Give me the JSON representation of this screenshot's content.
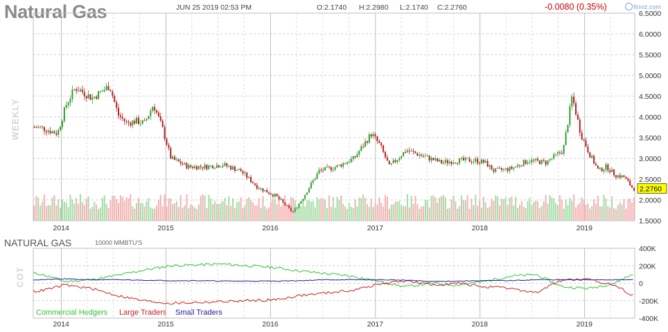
{
  "header": {
    "title": "Natural Gas",
    "datetime": "JUN 25 2019 02:53 PM",
    "open": "O:2.1740",
    "high": "H:2.2980",
    "low": "L:2.1740",
    "close": "C:2.2760",
    "change": "-0.0080 (0.35%)",
    "brand": "finviz.com"
  },
  "labels": {
    "weekly": "WEEKLY",
    "cot": "COT",
    "sub_title": "NATURAL GAS",
    "sub_unit": "10000 MMBTU'S",
    "price_tag": "2.2760"
  },
  "colors": {
    "up": "#2e9e2e",
    "down": "#b22222",
    "volume_up": "#a8dca8",
    "volume_down": "#f3b3b3",
    "commercial": "#2ec42e",
    "large": "#c81e1e",
    "small": "#1a1aa0",
    "change": "#cc0000",
    "tag": "#ffff00"
  },
  "chart_data": [
    {
      "type": "candlestick",
      "title": "Natural Gas",
      "ylabel": "",
      "ylim": [
        1.5,
        6.5
      ],
      "y_ticks": [
        "1.5000",
        "2.0000",
        "2.5000",
        "3.0000",
        "3.5000",
        "4.0000",
        "4.5000",
        "5.0000",
        "5.5000",
        "6.0000",
        "6.5000"
      ],
      "x_ticks": [
        "2014",
        "2015",
        "2016",
        "2017",
        "2018",
        "2019"
      ],
      "grid": true,
      "last_value": 2.276,
      "series": [
        {
          "x": [
            "2013-10",
            "2013-12",
            "2014-01",
            "2014-02",
            "2014-03",
            "2014-04",
            "2014-06",
            "2014-07",
            "2014-08",
            "2014-09",
            "2014-10",
            "2014-11",
            "2014-12",
            "2015-01",
            "2015-03",
            "2015-05",
            "2015-07",
            "2015-09",
            "2015-11",
            "2015-12",
            "2016-01",
            "2016-03",
            "2016-04",
            "2016-06",
            "2016-08",
            "2016-10",
            "2016-12",
            "2017-01",
            "2017-02",
            "2017-04",
            "2017-06",
            "2017-08",
            "2017-10",
            "2017-12",
            "2018-01",
            "2018-02",
            "2018-04",
            "2018-06",
            "2018-08",
            "2018-09",
            "2018-10",
            "2018-11",
            "2018-12",
            "2019-01",
            "2019-02",
            "2019-03",
            "2019-04",
            "2019-05",
            "2019-06"
          ],
          "values": [
            3.75,
            3.6,
            4.3,
            4.7,
            4.6,
            4.45,
            4.75,
            4.05,
            3.85,
            3.9,
            3.85,
            4.3,
            3.75,
            3.0,
            2.8,
            2.8,
            2.85,
            2.7,
            2.3,
            2.2,
            2.1,
            1.7,
            2.0,
            2.7,
            2.8,
            3.0,
            3.6,
            3.3,
            2.8,
            3.2,
            3.05,
            2.9,
            2.95,
            2.95,
            2.9,
            2.7,
            2.75,
            2.95,
            2.9,
            3.05,
            3.2,
            4.5,
            3.6,
            3.1,
            2.7,
            2.8,
            2.6,
            2.55,
            2.276
          ]
        }
      ]
    },
    {
      "type": "line",
      "title": "NATURAL GAS",
      "ylabel": "10000 MMBTU'S",
      "ylim": [
        -400000,
        400000
      ],
      "y_ticks": [
        "-400K",
        "-200K",
        "0",
        "200K",
        "400K"
      ],
      "x_ticks": [
        "2014",
        "2015",
        "2016",
        "2017",
        "2018",
        "2019"
      ],
      "x": [
        "2013-10",
        "2014-01",
        "2014-04",
        "2014-07",
        "2014-10",
        "2015-01",
        "2015-04",
        "2015-07",
        "2015-10",
        "2016-01",
        "2016-04",
        "2016-07",
        "2016-10",
        "2017-01",
        "2017-04",
        "2017-07",
        "2017-10",
        "2018-01",
        "2018-04",
        "2018-07",
        "2018-10",
        "2019-01",
        "2019-04",
        "2019-06"
      ],
      "series": [
        {
          "name": "Commercial Hedgers",
          "values": [
            110000,
            20000,
            40000,
            90000,
            150000,
            200000,
            210000,
            220000,
            200000,
            180000,
            140000,
            110000,
            80000,
            20000,
            -40000,
            0,
            -20000,
            20000,
            80000,
            100000,
            -40000,
            -60000,
            0,
            100000
          ]
        },
        {
          "name": "Large Traders",
          "values": [
            -90000,
            -20000,
            -60000,
            -140000,
            -200000,
            -230000,
            -220000,
            -210000,
            -200000,
            -190000,
            -140000,
            -110000,
            -80000,
            -10000,
            30000,
            -20000,
            0,
            -40000,
            -60000,
            -110000,
            40000,
            40000,
            -20000,
            -130000
          ]
        },
        {
          "name": "Small Traders",
          "values": [
            40000,
            50000,
            40000,
            40000,
            35000,
            30000,
            30000,
            25000,
            25000,
            25000,
            30000,
            40000,
            40000,
            40000,
            35000,
            20000,
            25000,
            30000,
            30000,
            40000,
            40000,
            40000,
            40000,
            40000
          ]
        }
      ]
    }
  ]
}
